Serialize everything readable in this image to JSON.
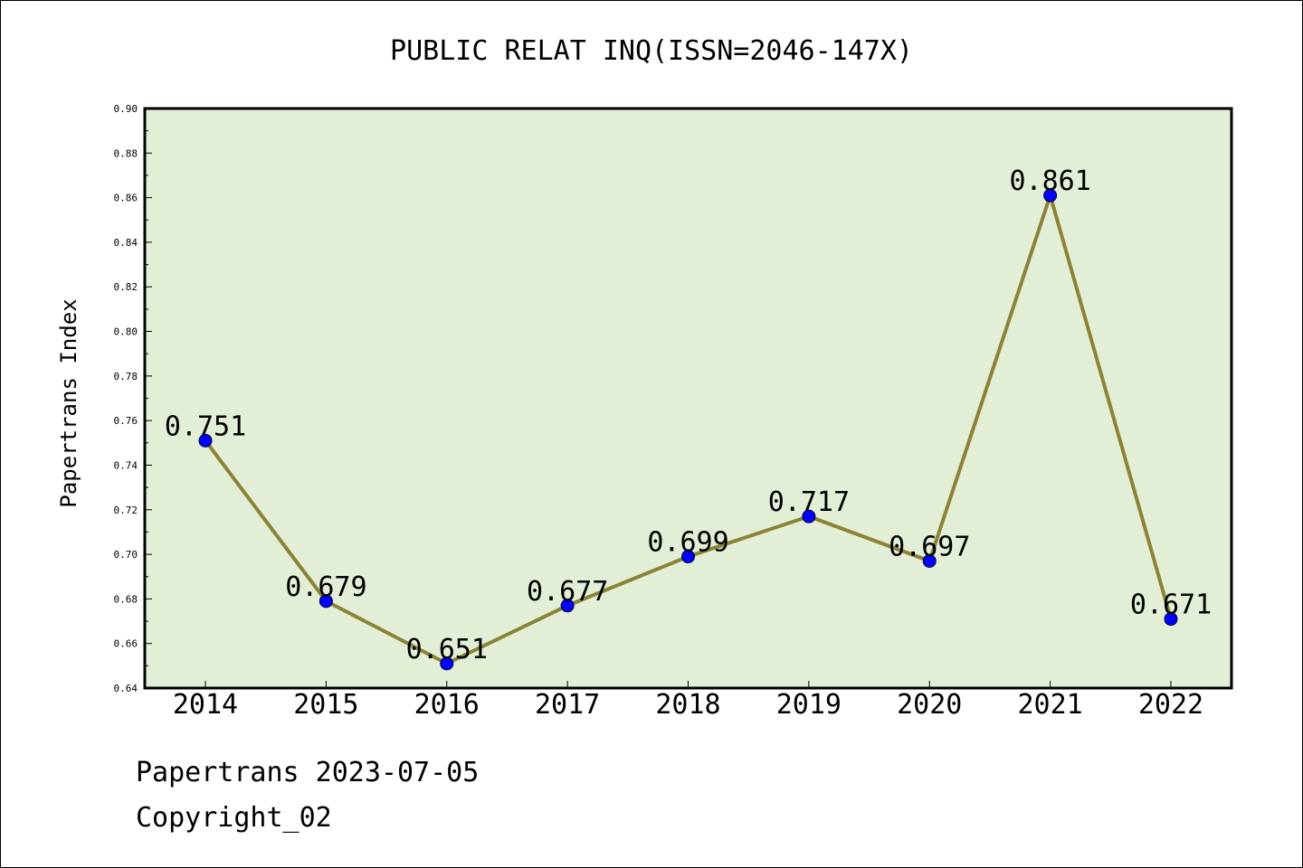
{
  "chart_data": {
    "type": "line",
    "title": "PUBLIC RELAT INQ(ISSN=2046-147X)",
    "ylabel": "Papertrans Index",
    "xlabel": "",
    "categories": [
      "2014",
      "2015",
      "2016",
      "2017",
      "2018",
      "2019",
      "2020",
      "2021",
      "2022"
    ],
    "values": [
      0.751,
      0.679,
      0.651,
      0.677,
      0.699,
      0.717,
      0.697,
      0.861,
      0.671
    ],
    "data_labels": [
      "0.751",
      "0.679",
      "0.651",
      "0.677",
      "0.699",
      "0.717",
      "0.697",
      "0.861",
      "0.671"
    ],
    "ylim": [
      0.64,
      0.9
    ],
    "yticks": [
      "0.64",
      "0.66",
      "0.68",
      "0.70",
      "0.72",
      "0.74",
      "0.76",
      "0.78",
      "0.80",
      "0.82",
      "0.84",
      "0.86",
      "0.88",
      "0.90"
    ],
    "grid": false,
    "colors": {
      "plot_background": "#e2efd6",
      "line": "#8b8236",
      "marker": "#0000ff"
    }
  },
  "footer": {
    "line1": "Papertrans 2023-07-05",
    "line2": "Copyright_02"
  }
}
